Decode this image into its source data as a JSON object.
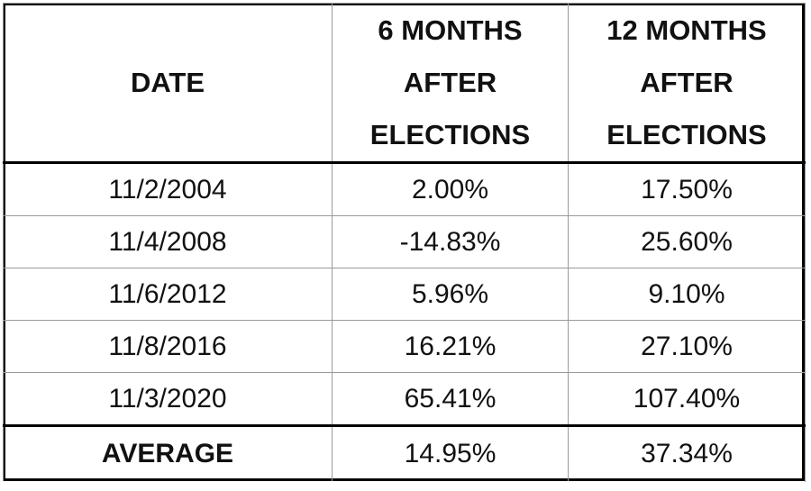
{
  "table": {
    "headers": {
      "date": "DATE",
      "six_months": [
        "6 MONTHS",
        "AFTER",
        "ELECTIONS"
      ],
      "twelve_months": [
        "12 MONTHS",
        "AFTER",
        "ELECTIONS"
      ]
    },
    "rows": [
      {
        "date": "11/2/2004",
        "six_months": "2.00%",
        "twelve_months": "17.50%"
      },
      {
        "date": "11/4/2008",
        "six_months": "-14.83%",
        "twelve_months": "25.60%"
      },
      {
        "date": "11/6/2012",
        "six_months": "5.96%",
        "twelve_months": "9.10%"
      },
      {
        "date": "11/8/2016",
        "six_months": "16.21%",
        "twelve_months": "27.10%"
      },
      {
        "date": "11/3/2020",
        "six_months": "65.41%",
        "twelve_months": "107.40%"
      }
    ],
    "average": {
      "label": "AVERAGE",
      "six_months": "14.95%",
      "twelve_months": "37.34%"
    }
  }
}
